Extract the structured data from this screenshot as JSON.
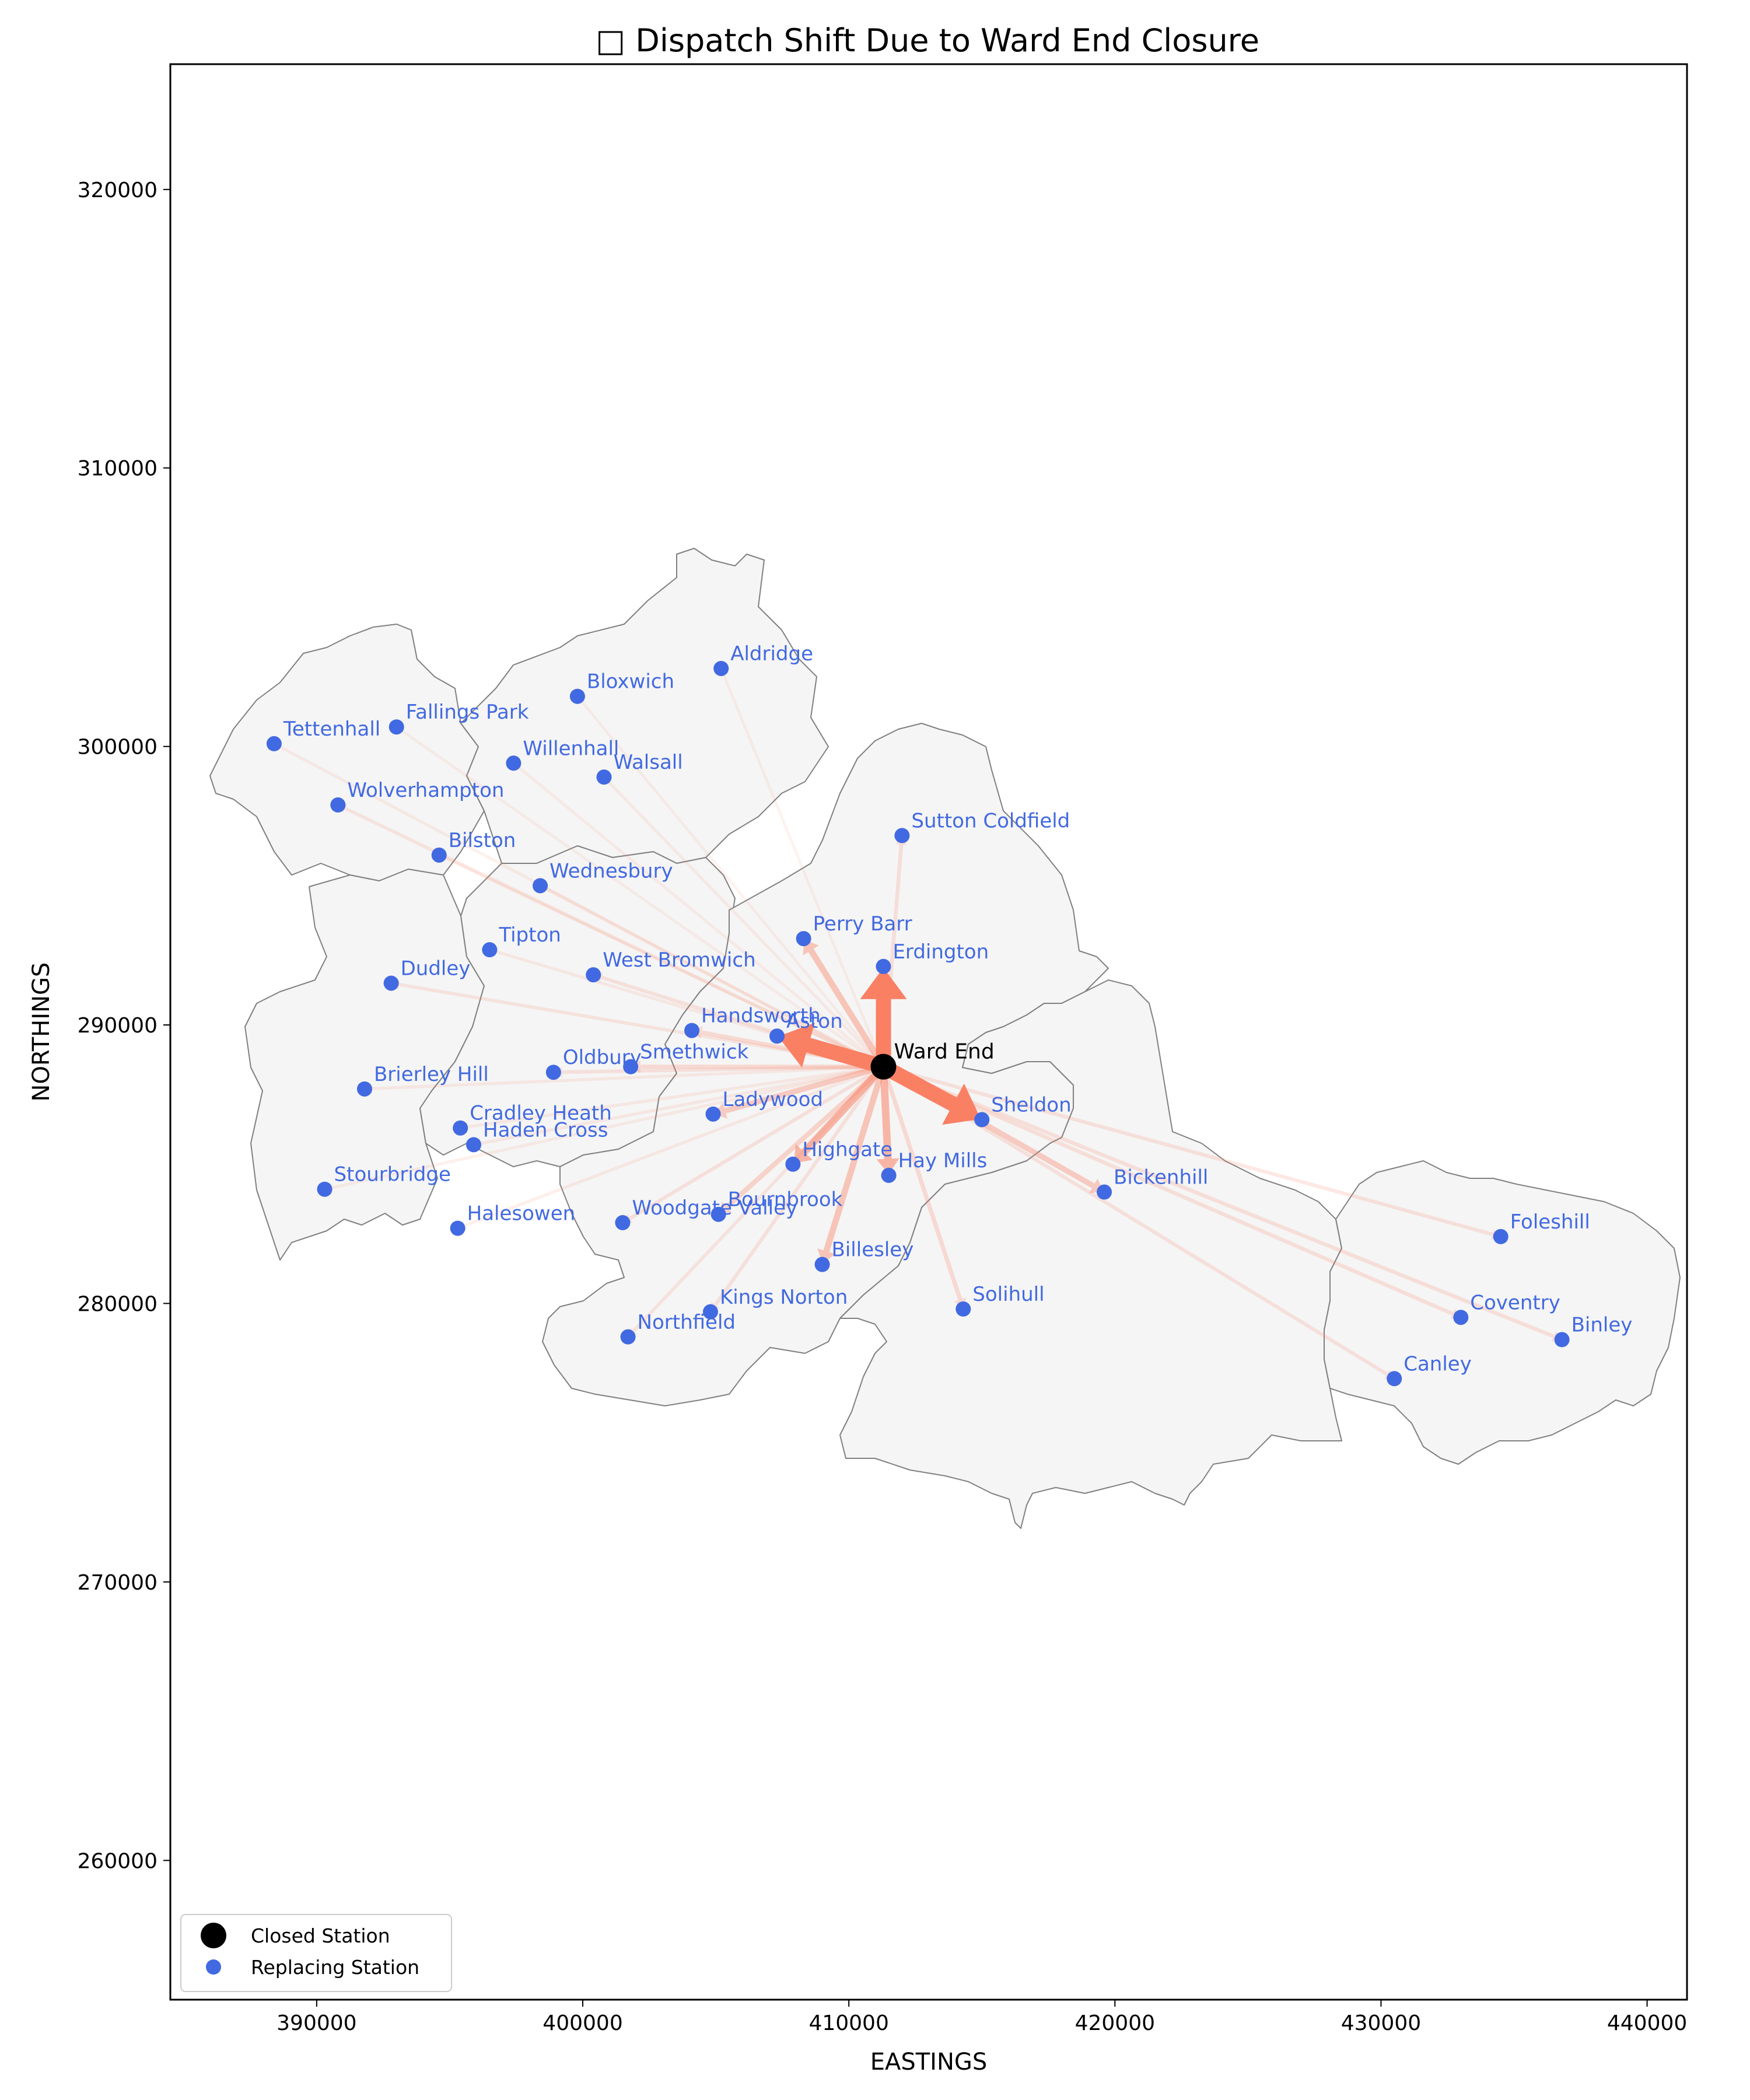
{
  "chart_data": {
    "type": "map",
    "title": "□ Dispatch Shift Due to Ward End Closure",
    "xlabel": "EASTINGS",
    "ylabel": "NORTHINGS",
    "xlim": [
      384500,
      441500
    ],
    "ylim": [
      255000,
      324500
    ],
    "xticks": [
      390000,
      400000,
      410000,
      420000,
      430000,
      440000
    ],
    "yticks": [
      260000,
      270000,
      280000,
      290000,
      300000,
      310000,
      320000
    ],
    "legend": {
      "placement": "lower-left",
      "entries": [
        {
          "label": "Closed Station",
          "color": "#000000"
        },
        {
          "label": "Replacing Station",
          "color": "#4169e1"
        }
      ]
    },
    "colors": {
      "region_fill": "#f4f4f4",
      "region_edge": "#808080",
      "arrow": "#fa8064",
      "station": "#4169e1",
      "station_label": "#4169e1",
      "closed_station": "#000000"
    },
    "closed_station": {
      "name": "Ward End",
      "x": 411300,
      "y": 288500
    },
    "stations": [
      {
        "name": "Aldridge",
        "x": 405200,
        "y": 302800,
        "flow": 0.03
      },
      {
        "name": "Bloxwich",
        "x": 399800,
        "y": 301800,
        "flow": 0.03
      },
      {
        "name": "Fallings Park",
        "x": 393000,
        "y": 300700,
        "flow": 0.03
      },
      {
        "name": "Tettenhall",
        "x": 388400,
        "y": 300100,
        "flow": 0.05
      },
      {
        "name": "Willenhall",
        "x": 397400,
        "y": 299400,
        "flow": 0.04
      },
      {
        "name": "Walsall",
        "x": 400800,
        "y": 298900,
        "flow": 0.05
      },
      {
        "name": "Wolverhampton",
        "x": 390800,
        "y": 297900,
        "flow": 0.08
      },
      {
        "name": "Sutton Coldfield",
        "x": 412000,
        "y": 296800,
        "flow": 0.12
      },
      {
        "name": "Bilston",
        "x": 394600,
        "y": 296100,
        "flow": 0.05
      },
      {
        "name": "Wednesbury",
        "x": 398400,
        "y": 295000,
        "flow": 0.06
      },
      {
        "name": "Perry Barr",
        "x": 408300,
        "y": 293100,
        "flow": 0.3
      },
      {
        "name": "Tipton",
        "x": 396500,
        "y": 292700,
        "flow": 0.06
      },
      {
        "name": "Erdington",
        "x": 411300,
        "y": 292100,
        "flow": 1.0
      },
      {
        "name": "West Bromwich",
        "x": 400400,
        "y": 291800,
        "flow": 0.1
      },
      {
        "name": "Dudley",
        "x": 392800,
        "y": 291500,
        "flow": 0.08
      },
      {
        "name": "Handsworth",
        "x": 404100,
        "y": 289800,
        "flow": 0.15
      },
      {
        "name": "Aston",
        "x": 407300,
        "y": 289600,
        "flow": 1.0
      },
      {
        "name": "Smethwick",
        "x": 401800,
        "y": 288500,
        "flow": 0.15
      },
      {
        "name": "Oldbury",
        "x": 398900,
        "y": 288300,
        "flow": 0.1
      },
      {
        "name": "Brierley Hill",
        "x": 391800,
        "y": 287700,
        "flow": 0.06
      },
      {
        "name": "Ladywood",
        "x": 404900,
        "y": 286800,
        "flow": 0.25
      },
      {
        "name": "Sheldon",
        "x": 415000,
        "y": 286600,
        "flow": 1.0
      },
      {
        "name": "Cradley Heath",
        "x": 395400,
        "y": 286300,
        "flow": 0.06
      },
      {
        "name": "Haden Cross",
        "x": 395900,
        "y": 285700,
        "flow": 0.06
      },
      {
        "name": "Highgate",
        "x": 407900,
        "y": 285000,
        "flow": 0.4
      },
      {
        "name": "Hay Mills",
        "x": 411500,
        "y": 284600,
        "flow": 0.4
      },
      {
        "name": "Stourbridge",
        "x": 390300,
        "y": 284100,
        "flow": 0.05
      },
      {
        "name": "Bickenhill",
        "x": 419600,
        "y": 284000,
        "flow": 0.25
      },
      {
        "name": "Bournbrook",
        "x": 405100,
        "y": 283200,
        "flow": 0.2
      },
      {
        "name": "Woodgate Valley",
        "x": 401500,
        "y": 282900,
        "flow": 0.1
      },
      {
        "name": "Halesowen",
        "x": 395300,
        "y": 282700,
        "flow": 0.06
      },
      {
        "name": "Foleshill",
        "x": 434500,
        "y": 282400,
        "flow": 0.1
      },
      {
        "name": "Billesley",
        "x": 409000,
        "y": 281400,
        "flow": 0.3
      },
      {
        "name": "Solihull",
        "x": 414300,
        "y": 279800,
        "flow": 0.15
      },
      {
        "name": "Kings Norton",
        "x": 404800,
        "y": 279700,
        "flow": 0.1
      },
      {
        "name": "Coventry",
        "x": 433000,
        "y": 279500,
        "flow": 0.12
      },
      {
        "name": "Northfield",
        "x": 401700,
        "y": 278800,
        "flow": 0.08
      },
      {
        "name": "Binley",
        "x": 436800,
        "y": 278700,
        "flow": 0.12
      },
      {
        "name": "Canley",
        "x": 430500,
        "y": 277300,
        "flow": 0.1
      }
    ]
  }
}
